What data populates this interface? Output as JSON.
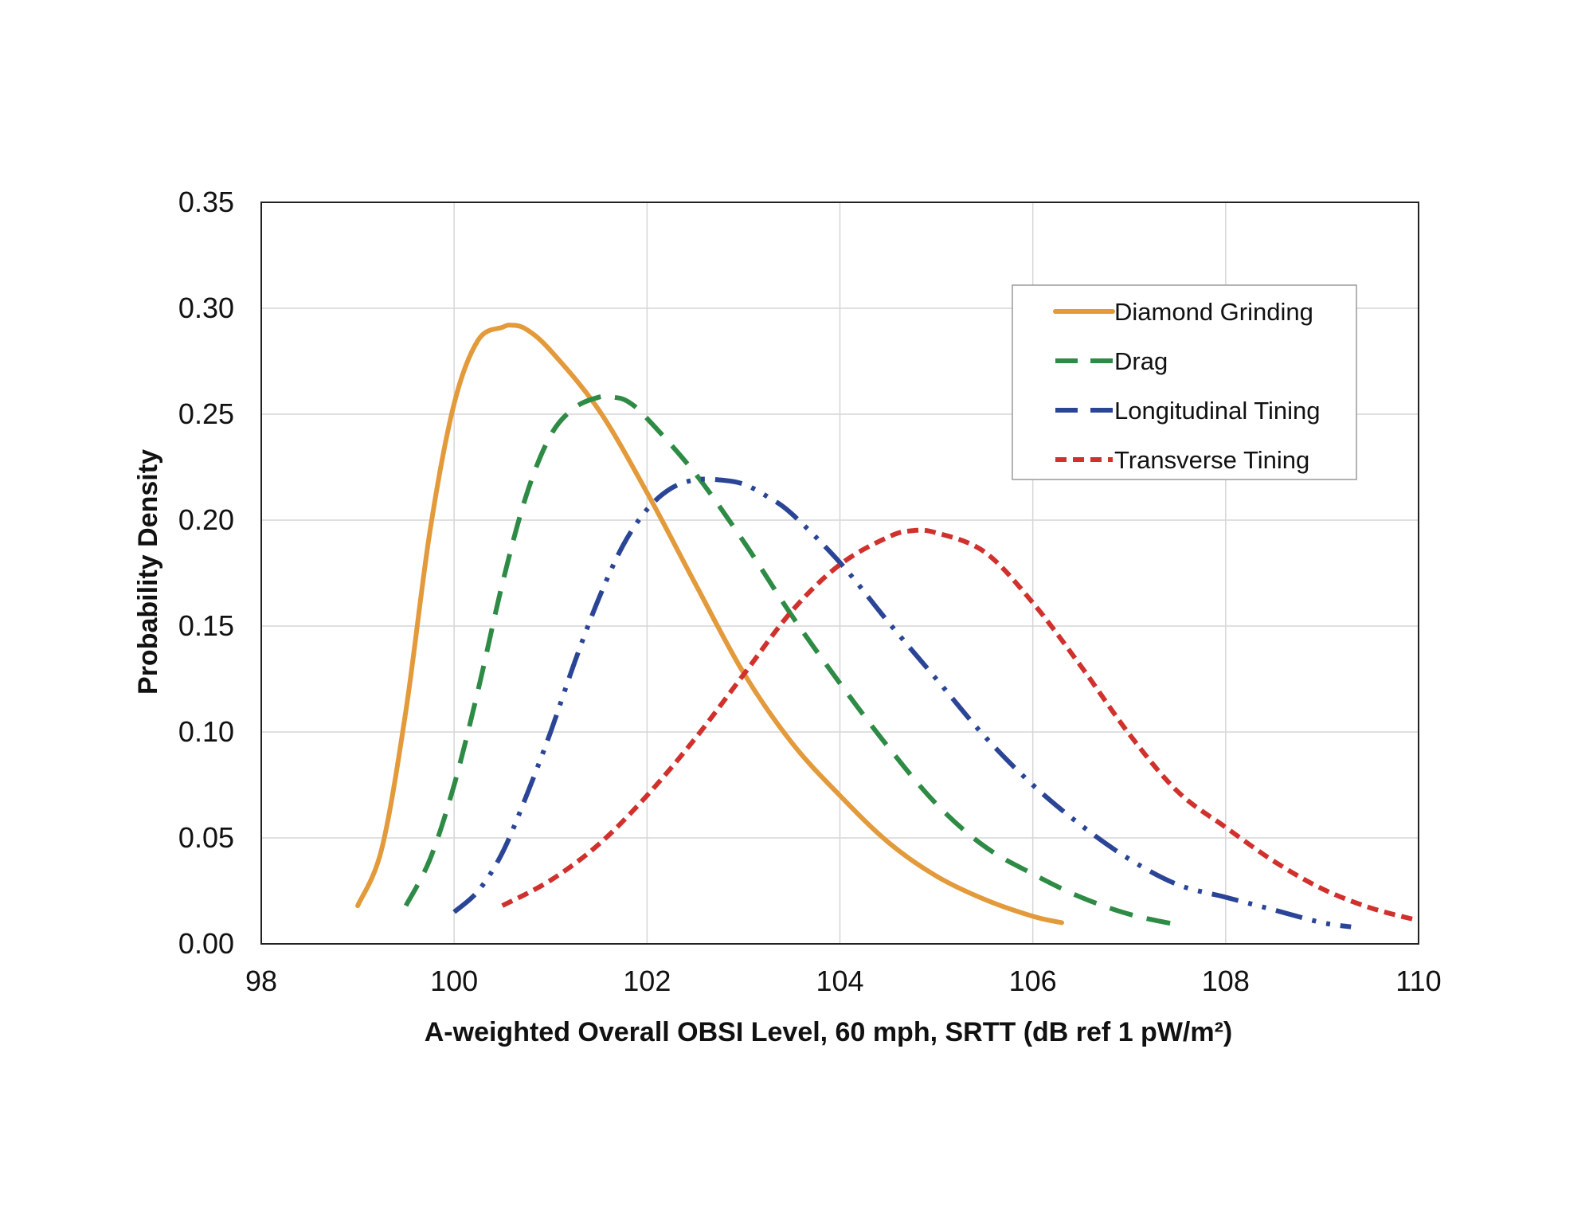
{
  "chart_data": {
    "type": "line",
    "title": "",
    "xlabel": "A-weighted Overall OBSI Level, 60 mph, SRTT (dB ref 1 pW/m²)",
    "ylabel": "Probability Density",
    "xlim": [
      98,
      110
    ],
    "ylim": [
      0,
      0.35
    ],
    "xticks": [
      98,
      100,
      102,
      104,
      106,
      108,
      110
    ],
    "yticks": [
      0,
      0.05,
      0.1,
      0.15,
      0.2,
      0.25,
      0.3,
      0.35
    ],
    "xtick_labels": [
      "98",
      "100",
      "102",
      "104",
      "106",
      "108",
      "110"
    ],
    "ytick_labels": [
      "0.00",
      "0.05",
      "0.10",
      "0.15",
      "0.20",
      "0.25",
      "0.30",
      "0.35"
    ],
    "grid": true,
    "legend_position": "top-right",
    "series": [
      {
        "name": "Diamond Grinding",
        "color": "#E39A3B",
        "dash": "solid",
        "x": [
          99.0,
          99.25,
          99.5,
          99.75,
          100.0,
          100.25,
          100.5,
          100.6,
          100.75,
          101.0,
          101.5,
          102.0,
          102.5,
          103.0,
          103.5,
          104.0,
          104.5,
          105.0,
          105.5,
          106.0,
          106.3
        ],
        "y": [
          0.018,
          0.045,
          0.11,
          0.195,
          0.255,
          0.285,
          0.291,
          0.292,
          0.29,
          0.28,
          0.252,
          0.213,
          0.17,
          0.128,
          0.095,
          0.07,
          0.048,
          0.032,
          0.021,
          0.013,
          0.01
        ]
      },
      {
        "name": "Drag",
        "color": "#2E8B45",
        "dash": "dash",
        "x": [
          99.5,
          99.75,
          100.0,
          100.25,
          100.5,
          100.75,
          101.0,
          101.25,
          101.5,
          101.65,
          101.8,
          102.0,
          102.5,
          103.0,
          103.5,
          104.0,
          104.5,
          105.0,
          105.5,
          106.0,
          106.5,
          107.0,
          107.5
        ],
        "y": [
          0.018,
          0.04,
          0.075,
          0.12,
          0.17,
          0.212,
          0.24,
          0.253,
          0.258,
          0.258,
          0.256,
          0.248,
          0.222,
          0.19,
          0.155,
          0.123,
          0.093,
          0.066,
          0.046,
          0.033,
          0.022,
          0.014,
          0.009
        ]
      },
      {
        "name": "Longitudinal Tining",
        "color": "#2B4596",
        "dash": "dash-dot-dot",
        "x": [
          100.0,
          100.25,
          100.5,
          100.75,
          101.0,
          101.25,
          101.5,
          101.75,
          102.0,
          102.25,
          102.5,
          102.75,
          103.0,
          103.25,
          103.5,
          104.0,
          104.5,
          105.0,
          105.5,
          106.0,
          106.5,
          107.0,
          107.5,
          108.0,
          108.5,
          109.0,
          109.3
        ],
        "y": [
          0.015,
          0.025,
          0.043,
          0.07,
          0.1,
          0.133,
          0.163,
          0.188,
          0.205,
          0.215,
          0.219,
          0.219,
          0.217,
          0.211,
          0.203,
          0.18,
          0.152,
          0.125,
          0.098,
          0.075,
          0.056,
          0.04,
          0.028,
          0.022,
          0.016,
          0.01,
          0.008
        ]
      },
      {
        "name": "Transverse Tining",
        "color": "#D0312D",
        "dash": "short-dash",
        "x": [
          100.5,
          101.0,
          101.5,
          102.0,
          102.5,
          103.0,
          103.5,
          104.0,
          104.5,
          104.75,
          105.0,
          105.5,
          106.0,
          106.5,
          107.0,
          107.5,
          108.0,
          108.5,
          109.0,
          109.5,
          110.0
        ],
        "y": [
          0.018,
          0.03,
          0.047,
          0.07,
          0.097,
          0.127,
          0.157,
          0.179,
          0.192,
          0.195,
          0.194,
          0.185,
          0.161,
          0.131,
          0.099,
          0.072,
          0.055,
          0.039,
          0.026,
          0.017,
          0.011
        ]
      }
    ]
  }
}
